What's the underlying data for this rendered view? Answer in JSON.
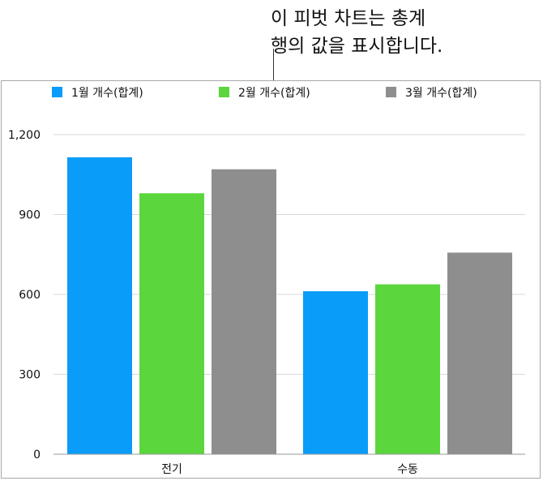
{
  "callout": {
    "line1": "이 피벗 차트는 총계",
    "line2": "행의 값을 표시합니다."
  },
  "colors": {
    "series1": "#0a9cf9",
    "series2": "#5cd63d",
    "series3": "#8e8e8e",
    "grid": "#d9d9d9",
    "axis": "#9a9a9a",
    "frame": "#a8a8a8"
  },
  "chart_data": {
    "type": "bar",
    "categories": [
      "전기",
      "수동"
    ],
    "series": [
      {
        "name": "1월 개수(합계)",
        "values": [
          1115,
          612
        ]
      },
      {
        "name": "2월 개수(합계)",
        "values": [
          980,
          638
        ]
      },
      {
        "name": "3월 개수(합계)",
        "values": [
          1070,
          757
        ]
      }
    ],
    "ylim": [
      0,
      1200
    ],
    "yticks": [
      0,
      300,
      600,
      900,
      1200
    ],
    "ytick_labels": [
      "0",
      "300",
      "600",
      "900",
      "1,200"
    ],
    "grid": true,
    "legend": "top"
  }
}
